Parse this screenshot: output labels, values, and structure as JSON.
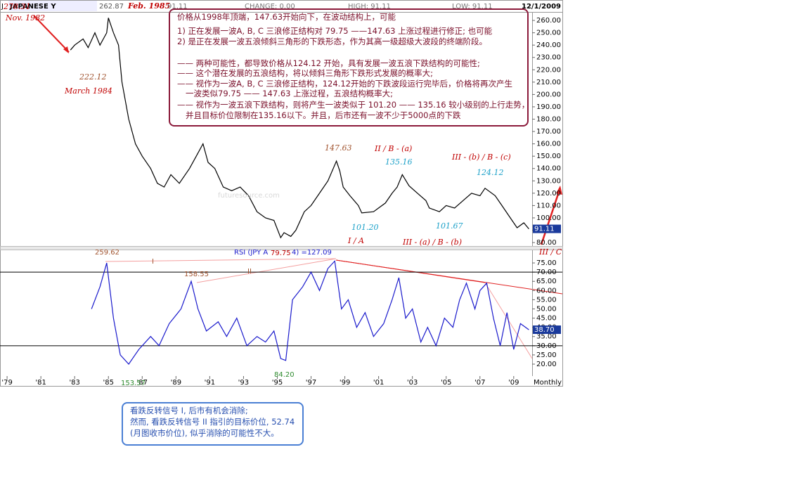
{
  "chart_data": [
    {
      "type": "line",
      "header": [
        "J",
        "JAPANESE Y",
        "262.87",
        "Feb. 1985",
        "91.11",
        "CHANGE: 0.00",
        "HIGH: 91.11",
        "LOW: 91.11",
        "12/1/2009"
      ],
      "x": [
        1982.75,
        1983.0,
        1983.5,
        1983.8,
        1984.2,
        1984.5,
        1984.9,
        1985.0,
        1985.3,
        1985.6,
        1985.8,
        1986.2,
        1986.6,
        1987.0,
        1987.5,
        1987.9,
        1988.3,
        1988.7,
        1989.2,
        1989.8,
        1990.2,
        1990.6,
        1990.9,
        1991.3,
        1991.8,
        1992.3,
        1992.8,
        1993.3,
        1993.8,
        1994.3,
        1994.8,
        1995.2,
        1995.4,
        1995.8,
        1996.1,
        1996.6,
        1997.0,
        1997.5,
        1998.0,
        1998.5,
        1998.7,
        1998.9,
        1999.3,
        1999.8,
        2000.0,
        2000.7,
        2001.0,
        2001.4,
        2001.8,
        2002.1,
        2002.4,
        2002.8,
        2003.3,
        2003.8,
        2004.0,
        2004.6,
        2005.0,
        2005.5,
        2006.0,
        2006.5,
        2007.0,
        2007.3,
        2007.9,
        2008.3,
        2008.8,
        2009.2,
        2009.6,
        2009.9
      ],
      "values": [
        236,
        240,
        245,
        238,
        250,
        240,
        250,
        262,
        250,
        240,
        210,
        180,
        160,
        150,
        140,
        128,
        125,
        135,
        128,
        140,
        150,
        160,
        145,
        140,
        125,
        122,
        125,
        118,
        105,
        100,
        98,
        84,
        88,
        85,
        90,
        105,
        110,
        120,
        130,
        146,
        138,
        125,
        118,
        110,
        104,
        105,
        108,
        112,
        120,
        125,
        135,
        126,
        120,
        114,
        108,
        105,
        110,
        108,
        114,
        120,
        118,
        124,
        118,
        110,
        100,
        92,
        96,
        91.11
      ],
      "color": "#000000",
      "xlim": [
        1978.58,
        2010.09
      ],
      "ylim": [
        77.2,
        266.3
      ],
      "yticks": [
        {
          "value": 80,
          "label": "80.00"
        },
        {
          "value": 90,
          "label": "90.00"
        },
        {
          "value": 100,
          "label": "100.00"
        },
        {
          "value": 110,
          "label": "110.00"
        },
        {
          "value": 120,
          "label": "120.00"
        },
        {
          "value": 130,
          "label": "130.00"
        },
        {
          "value": 140,
          "label": "140.00"
        },
        {
          "value": 150,
          "label": "150.00"
        },
        {
          "value": 160,
          "label": "160.00"
        },
        {
          "value": 170,
          "label": "170.00"
        },
        {
          "value": 180,
          "label": "180.00"
        },
        {
          "value": 190,
          "label": "190.00"
        },
        {
          "value": 200,
          "label": "200.00"
        },
        {
          "value": 210,
          "label": "210.00"
        },
        {
          "value": 220,
          "label": "220.00"
        },
        {
          "value": 230,
          "label": "230.00"
        },
        {
          "value": 240,
          "label": "240.00"
        },
        {
          "value": 250,
          "label": "250.00"
        },
        {
          "value": 260,
          "label": "260.00"
        }
      ],
      "last_label": "91.11",
      "annotations": [
        {
          "text": "278.31",
          "color": "#c00000"
        },
        {
          "text": "Nov. 1982",
          "color": "#c00000"
        },
        {
          "text": "222.12",
          "color": "#a0522d"
        },
        {
          "text": "March 1984",
          "color": "#c00000"
        },
        {
          "text": "147.63",
          "color": "#a0522d"
        },
        {
          "text": "II / B - (a)",
          "color": "#c00000"
        },
        {
          "text": "135.16",
          "color": "#1aa0c8"
        },
        {
          "text": "III - (b) / B - (c)",
          "color": "#c00000"
        },
        {
          "text": "124.12",
          "color": "#1aa0c8"
        },
        {
          "text": "101.20",
          "color": "#1aa0c8"
        },
        {
          "text": "I / A",
          "color": "#c00000"
        },
        {
          "text": "101.67",
          "color": "#1aa0c8"
        },
        {
          "text": "III - (a) / B - (b)",
          "color": "#c00000"
        },
        {
          "text": "III / C",
          "color": "#c00000"
        },
        {
          "text": "futuresource.com",
          "color": "#d8d8d8"
        }
      ]
    },
    {
      "type": "line",
      "x": [
        1984.0,
        1984.5,
        1984.9,
        1985.3,
        1985.7,
        1986.2,
        1986.8,
        1987.5,
        1988.0,
        1988.6,
        1989.3,
        1989.9,
        1990.3,
        1990.8,
        1991.5,
        1992.0,
        1992.6,
        1993.2,
        1993.8,
        1994.3,
        1994.8,
        1995.2,
        1995.5,
        1995.9,
        1996.5,
        1997.0,
        1997.5,
        1998.0,
        1998.4,
        1998.8,
        1999.2,
        1999.7,
        2000.2,
        2000.7,
        2001.3,
        2001.8,
        2002.2,
        2002.6,
        2003.0,
        2003.5,
        2003.9,
        2004.4,
        2004.9,
        2005.4,
        2005.8,
        2006.2,
        2006.7,
        2007.0,
        2007.4,
        2007.8,
        2008.2,
        2008.6,
        2009.0,
        2009.4,
        2009.9
      ],
      "values": [
        50,
        62,
        75,
        45,
        25,
        20,
        28,
        35,
        30,
        42,
        50,
        65,
        50,
        38,
        43,
        35,
        45,
        30,
        35,
        32,
        38,
        23,
        22,
        55,
        62,
        70,
        60,
        72,
        76,
        50,
        55,
        40,
        48,
        35,
        42,
        55,
        67,
        45,
        50,
        32,
        40,
        30,
        45,
        40,
        55,
        64,
        50,
        60,
        64,
        45,
        30,
        48,
        28,
        42,
        38.7
      ],
      "color": "#1a1acc",
      "xlim": [
        1978.58,
        2010.09
      ],
      "ylim": [
        13.5,
        81.9
      ],
      "yticks": [
        {
          "value": 20,
          "label": "20.00"
        },
        {
          "value": 25,
          "label": "25.00"
        },
        {
          "value": 30,
          "label": "30.00"
        },
        {
          "value": 35,
          "label": "35.00"
        },
        {
          "value": 40,
          "label": "40.00"
        },
        {
          "value": 45,
          "label": "45.00"
        },
        {
          "value": 50,
          "label": "50.00"
        },
        {
          "value": 55,
          "label": "55.00"
        },
        {
          "value": 60,
          "label": "60.00"
        },
        {
          "value": 65,
          "label": "65.00"
        },
        {
          "value": 70,
          "label": "70.00"
        },
        {
          "value": 75,
          "label": "75.00"
        }
      ],
      "xticks": [
        {
          "value": 1979,
          "label": "'79"
        },
        {
          "value": 1981,
          "label": "'81"
        },
        {
          "value": 1983,
          "label": "'83"
        },
        {
          "value": 1985,
          "label": "'85"
        },
        {
          "value": 1987,
          "label": "'87"
        },
        {
          "value": 1989,
          "label": "'89"
        },
        {
          "value": 1991,
          "label": "'91"
        },
        {
          "value": 1993,
          "label": "'93"
        },
        {
          "value": 1995,
          "label": "'95"
        },
        {
          "value": 1997,
          "label": "'97"
        },
        {
          "value": 1999,
          "label": "'99"
        },
        {
          "value": 2001,
          "label": "'01"
        },
        {
          "value": 2003,
          "label": "'03"
        },
        {
          "value": 2005,
          "label": "'05"
        },
        {
          "value": 2007,
          "label": "'07"
        },
        {
          "value": 2009,
          "label": "'09"
        }
      ],
      "x_label": "Monthly",
      "hlines": [
        70,
        30
      ],
      "last_label": "38.70",
      "annotations": [
        {
          "text": "259.62",
          "color": "#a0522d"
        },
        {
          "text": "158.55",
          "color": "#a0522d"
        },
        {
          "text": "I",
          "color": "#a0522d"
        },
        {
          "text": "II",
          "color": "#a0522d"
        },
        {
          "text": "84.20",
          "color": "#2e8b2e"
        },
        {
          "text": "153.57",
          "color": "#2e8b2e"
        },
        {
          "text": "RSI (JPY A",
          "color": "#1a1acc"
        },
        {
          "text": "79.75",
          "color": "#c00000"
        },
        {
          "text": "4) =127.09",
          "color": "#1a1acc"
        }
      ]
    }
  ],
  "notes": {
    "box1": [
      "价格从1998年顶端，147.63开始向下，在波动结构上，可能",
      "1) 正在发展一波A, B, C 三浪修正结构对 79.75 ——147.63 上涨过程进行修正; 也可能",
      "2) 是正在发展一波五浪倾斜三角形的下跌形态，作为其高一级超级大波段的终端阶段。",
      "—— 两种可能性，都导致价格从124.12 开始，具有发展一波五浪下跌结构的可能性;",
      "—— 这个潜在发展的五浪结构，将以倾斜三角形下跌形式发展的概率大;",
      "—— 视作为一波A, B, C 三浪修正结构，124.12开始的下跌波段运行完毕后，价格将再次产生",
      "一波类似79.75 ——  147.63 上涨过程，五浪结构概率大;",
      "—— 视作为一波五浪下跌结构，则将产生一波类似于 101.20 —— 135.16 较小级别的上行走势，",
      "并且目标价位限制在135.16以下。并且，后市还有一波不少于5000点的下跌"
    ],
    "box2": [
      "看跌反转信号 I, 后市有机会消除;",
      "然而, 看跌反转信号 II 指引的目标价位, 52.74",
      "(月图收市价位), 似乎消除的可能性不大。"
    ]
  }
}
